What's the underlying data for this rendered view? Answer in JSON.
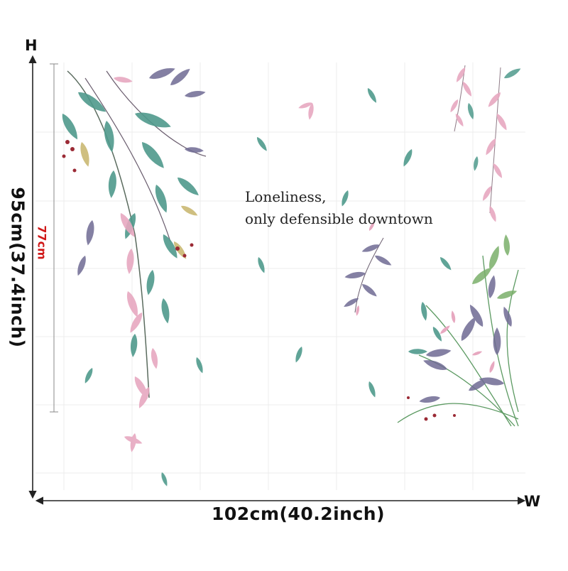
{
  "dimensions": {
    "axis_h": "H",
    "axis_w": "W",
    "width": "102cm(40.2inch)",
    "height": "95cm(37.4inch)",
    "inner_height": "77cm"
  },
  "quote": {
    "line1": "Loneliness,",
    "line2": "only defensible downtown"
  },
  "colors": {
    "leaf_green": "#4f9a8c",
    "leaf_pink": "#e7a8c0",
    "leaf_purple": "#6f6a93",
    "berry_red": "#9b2a35",
    "inner_dimension": "#d01818"
  }
}
